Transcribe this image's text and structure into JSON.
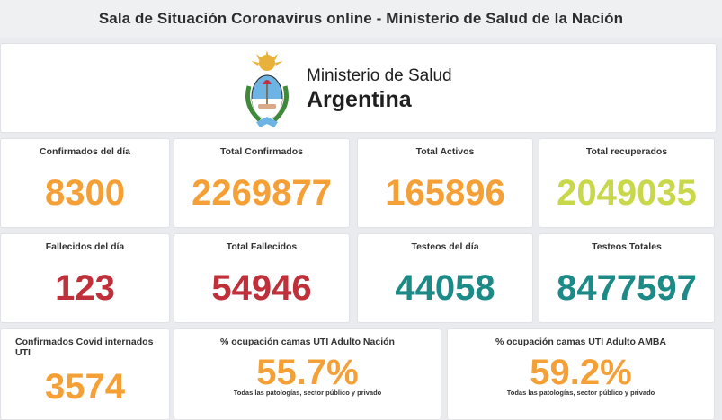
{
  "header": {
    "title": "Sala de Situación Coronavirus online - Ministerio de Salud de la Nación"
  },
  "logo": {
    "line1": "Ministerio de Salud",
    "line2": "Argentina",
    "icon": "argentina-coat-of-arms-icon"
  },
  "colors": {
    "orange": "#f4a037",
    "lime": "#c8d84a",
    "red": "#c0303a",
    "teal": "#1c8b87"
  },
  "row1": [
    {
      "label": "Confirmados del día",
      "value": "8300"
    },
    {
      "label": "Total Confirmados",
      "value": "2269877"
    },
    {
      "label": "Total Activos",
      "value": "165896"
    },
    {
      "label": "Total recuperados",
      "value": "2049035"
    }
  ],
  "row2": [
    {
      "label": "Fallecidos del día",
      "value": "123"
    },
    {
      "label": "Total Fallecidos",
      "value": "54946"
    },
    {
      "label": "Testeos del día",
      "value": "44058"
    },
    {
      "label": "Testeos Totales",
      "value": "8477597"
    }
  ],
  "row3": [
    {
      "label": "Confirmados Covid internados UTI",
      "value": "3574"
    },
    {
      "label": "% ocupación camas UTI Adulto Nación",
      "value": "55.7%",
      "note": "Todas las patologías, sector público y privado"
    },
    {
      "label": "% ocupación camas UTI Adulto AMBA",
      "value": "59.2%",
      "note": "Todas las patologías, sector público y privado"
    }
  ]
}
